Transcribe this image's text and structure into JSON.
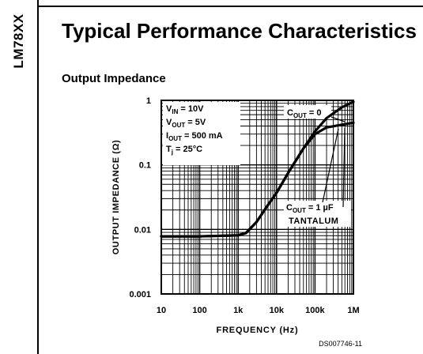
{
  "sidebar": {
    "part_number": "LM78XX"
  },
  "header": {
    "title": "Typical Performance Characteristics"
  },
  "section": {
    "title": "Output Impedance"
  },
  "doc_code": "DS007746-11",
  "chart_data": {
    "type": "line",
    "title": "Output Impedance",
    "xlabel": "FREQUENCY (Hz)",
    "ylabel": "OUTPUT IMPEDANCE (Ω)",
    "xscale": "log",
    "yscale": "log",
    "xlim": [
      10,
      1000000
    ],
    "ylim": [
      0.001,
      1
    ],
    "x_ticks": [
      {
        "v": 10,
        "label": "10"
      },
      {
        "v": 100,
        "label": "100"
      },
      {
        "v": 1000,
        "label": "1k"
      },
      {
        "v": 10000,
        "label": "10k"
      },
      {
        "v": 100000,
        "label": "100k"
      },
      {
        "v": 1000000,
        "label": "1M"
      }
    ],
    "y_ticks": [
      {
        "v": 1,
        "label": "1"
      },
      {
        "v": 0.1,
        "label": "0.1"
      },
      {
        "v": 0.01,
        "label": "0.01"
      },
      {
        "v": 0.001,
        "label": "0.001"
      }
    ],
    "grid": true,
    "conditions": [
      {
        "name": "V",
        "sub": "IN",
        "value": " = 10V"
      },
      {
        "name": "V",
        "sub": "OUT",
        "value": " = 5V"
      },
      {
        "name": "I",
        "sub": "OUT",
        "value": " = 500 mA"
      },
      {
        "name": "T",
        "sub": "j",
        "value": " = 25°C"
      }
    ],
    "series": [
      {
        "name": "COUT = 0",
        "label_parts": [
          "C",
          "OUT",
          " = 0"
        ],
        "points": [
          [
            10,
            0.0078
          ],
          [
            100,
            0.0078
          ],
          [
            1000,
            0.0081
          ],
          [
            1600,
            0.0088
          ],
          [
            3000,
            0.013
          ],
          [
            6000,
            0.024
          ],
          [
            10000,
            0.037
          ],
          [
            20000,
            0.075
          ],
          [
            50000,
            0.18
          ],
          [
            100000,
            0.33
          ],
          [
            200000,
            0.53
          ],
          [
            500000,
            0.78
          ],
          [
            1000000,
            0.95
          ]
        ]
      },
      {
        "name": "COUT = 1 µF TANTALUM",
        "label_parts": [
          "C",
          "OUT",
          " = 1 µF",
          "TANTALUM"
        ],
        "points": [
          [
            10,
            0.0078
          ],
          [
            100,
            0.0078
          ],
          [
            1000,
            0.0081
          ],
          [
            1600,
            0.0088
          ],
          [
            3000,
            0.013
          ],
          [
            6000,
            0.024
          ],
          [
            10000,
            0.037
          ],
          [
            20000,
            0.075
          ],
          [
            50000,
            0.18
          ],
          [
            100000,
            0.3
          ],
          [
            200000,
            0.38
          ],
          [
            500000,
            0.42
          ],
          [
            1000000,
            0.45
          ]
        ]
      }
    ]
  }
}
